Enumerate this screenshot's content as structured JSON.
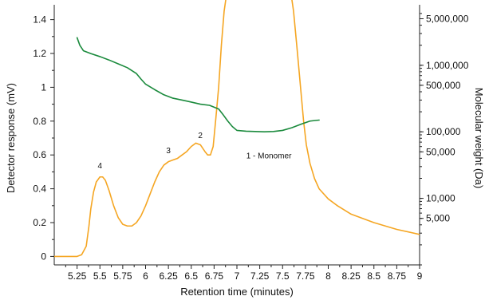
{
  "chart_data": {
    "type": "line",
    "xlabel": "Retention time (minutes)",
    "ylabel": "Detector response (mV)",
    "y2label": "Molecular weight (Da)",
    "xlim": [
      5.0,
      9.0
    ],
    "ylim": [
      -0.05,
      1.45
    ],
    "y2lim": [
      1000,
      6500000
    ],
    "y2scale": "log",
    "grid": false,
    "x_ticks": [
      {
        "value": 5.25,
        "label": "5.25"
      },
      {
        "value": 5.5,
        "label": "5.5"
      },
      {
        "value": 5.75,
        "label": "5.75"
      },
      {
        "value": 6.0,
        "label": "6"
      },
      {
        "value": 6.25,
        "label": "6.25"
      },
      {
        "value": 6.5,
        "label": "6.5"
      },
      {
        "value": 6.75,
        "label": "6.75"
      },
      {
        "value": 7.0,
        "label": "7"
      },
      {
        "value": 7.25,
        "label": "7.25"
      },
      {
        "value": 7.5,
        "label": "7.5"
      },
      {
        "value": 7.75,
        "label": "7.75"
      },
      {
        "value": 8.0,
        "label": "8"
      },
      {
        "value": 8.25,
        "label": "8.25"
      },
      {
        "value": 8.5,
        "label": "8.5"
      },
      {
        "value": 8.75,
        "label": "8.75"
      },
      {
        "value": 9.0,
        "label": "9"
      }
    ],
    "y_ticks": [
      {
        "value": 0,
        "label": "0"
      },
      {
        "value": 0.2,
        "label": "0.2"
      },
      {
        "value": 0.4,
        "label": "0.4"
      },
      {
        "value": 0.6,
        "label": "0.6"
      },
      {
        "value": 0.8,
        "label": "0.8"
      },
      {
        "value": 1.0,
        "label": "1"
      },
      {
        "value": 1.2,
        "label": "1.2"
      },
      {
        "value": 1.4,
        "label": "1.4"
      }
    ],
    "y2_ticks": [
      {
        "value": 5000000,
        "label": "5,000,000"
      },
      {
        "value": 1000000,
        "label": "1,000,000"
      },
      {
        "value": 500000,
        "label": "500,000"
      },
      {
        "value": 100000,
        "label": "100,000"
      },
      {
        "value": 50000,
        "label": "50,000"
      },
      {
        "value": 10000,
        "label": "10,000"
      },
      {
        "value": 5000,
        "label": "5,000"
      }
    ],
    "series": [
      {
        "axis": "left",
        "color": "#f5a623",
        "x": [
          5.0,
          5.1,
          5.2,
          5.25,
          5.3,
          5.35,
          5.38,
          5.4,
          5.43,
          5.46,
          5.5,
          5.53,
          5.56,
          5.6,
          5.65,
          5.7,
          5.75,
          5.8,
          5.85,
          5.9,
          5.95,
          6.0,
          6.05,
          6.1,
          6.15,
          6.2,
          6.25,
          6.3,
          6.35,
          6.4,
          6.45,
          6.5,
          6.55,
          6.6,
          6.65,
          6.68,
          6.71,
          6.74,
          6.77,
          6.8,
          6.83,
          6.86,
          6.9
        ],
        "y": [
          0.0,
          0.0,
          0.0,
          0.0,
          0.01,
          0.06,
          0.18,
          0.28,
          0.38,
          0.44,
          0.47,
          0.47,
          0.45,
          0.39,
          0.3,
          0.23,
          0.19,
          0.18,
          0.18,
          0.2,
          0.24,
          0.3,
          0.37,
          0.44,
          0.5,
          0.54,
          0.56,
          0.57,
          0.58,
          0.6,
          0.62,
          0.65,
          0.67,
          0.66,
          0.62,
          0.6,
          0.6,
          0.65,
          0.82,
          1.0,
          1.25,
          1.45,
          1.6
        ]
      },
      {
        "axis": "left",
        "color": "#f5a623",
        "x": [
          7.58,
          7.62,
          7.66,
          7.7,
          7.73,
          7.76,
          7.8,
          7.85,
          7.9,
          8.0,
          8.1,
          8.25,
          8.5,
          8.75,
          9.0
        ],
        "y": [
          1.6,
          1.45,
          1.22,
          0.98,
          0.8,
          0.66,
          0.55,
          0.46,
          0.4,
          0.34,
          0.3,
          0.25,
          0.2,
          0.16,
          0.13
        ]
      },
      {
        "axis": "right",
        "color": "#1a8a3c",
        "x": [
          5.25,
          5.28,
          5.32,
          5.4,
          5.5,
          5.6,
          5.7,
          5.8,
          5.9,
          5.95,
          6.0,
          6.1,
          6.2,
          6.3,
          6.4,
          6.5,
          6.6,
          6.7,
          6.8,
          6.85,
          6.9,
          6.95,
          7.0,
          7.1,
          7.2,
          7.3,
          7.4,
          7.5,
          7.6,
          7.7,
          7.8,
          7.9
        ],
        "y": [
          2600000,
          2000000,
          1650000,
          1500000,
          1350000,
          1200000,
          1050000,
          920000,
          750000,
          620000,
          520000,
          430000,
          360000,
          320000,
          300000,
          280000,
          260000,
          250000,
          220000,
          180000,
          145000,
          120000,
          105000,
          102000,
          101000,
          100000,
          101000,
          105000,
          115000,
          130000,
          145000,
          150000
        ]
      }
    ],
    "annotations": [
      {
        "text": "4",
        "x": 5.5,
        "y": 0.52
      },
      {
        "text": "3",
        "x": 6.25,
        "y": 0.61
      },
      {
        "text": "2",
        "x": 6.6,
        "y": 0.7
      },
      {
        "text": "1 - Monomer",
        "x": 7.35,
        "y": 0.58
      }
    ]
  }
}
